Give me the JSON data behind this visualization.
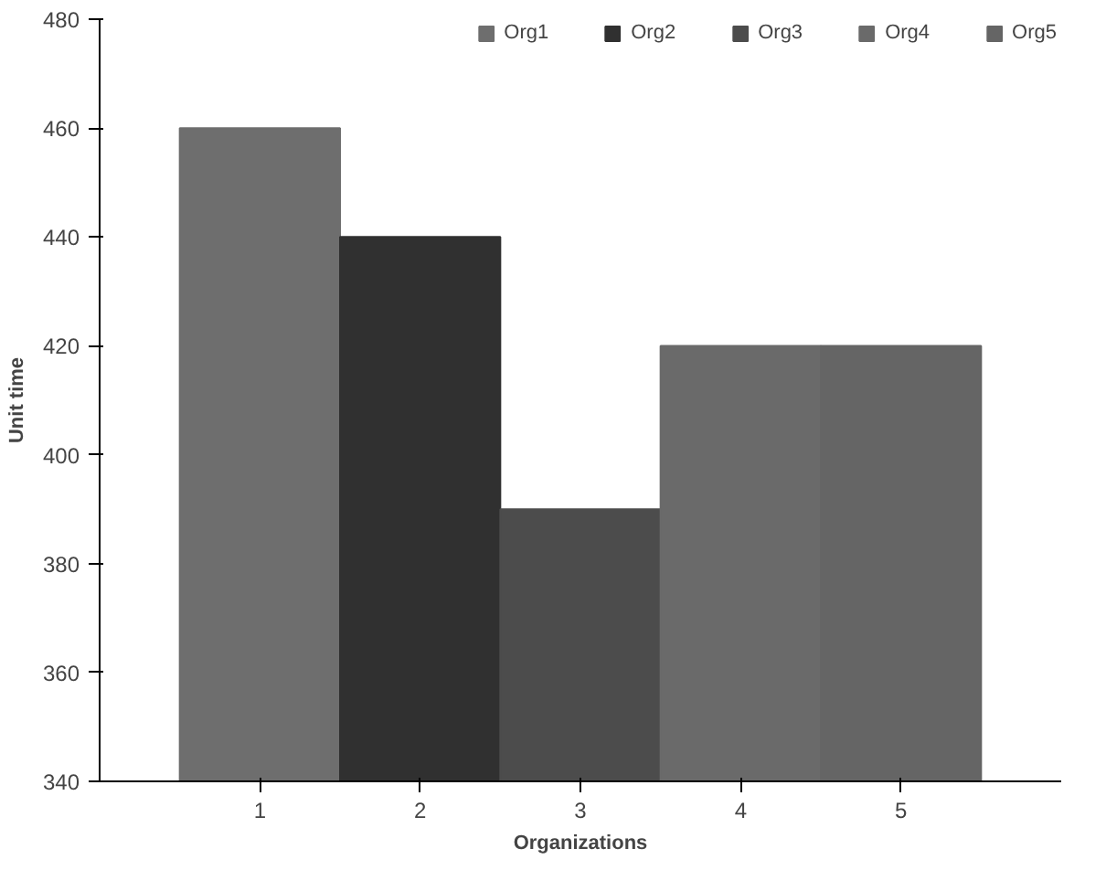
{
  "chart_data": {
    "type": "bar",
    "xlabel": "Organizations",
    "ylabel": "Unit time",
    "categories": [
      "1",
      "2",
      "3",
      "4",
      "5"
    ],
    "series": [
      {
        "name": "Org1",
        "color": "#6e6e6e",
        "values": [
          460,
          null,
          null,
          null,
          null
        ]
      },
      {
        "name": "Org2",
        "color": "#303030",
        "values": [
          null,
          440,
          null,
          null,
          null
        ]
      },
      {
        "name": "Org3",
        "color": "#4c4c4c",
        "values": [
          null,
          null,
          390,
          null,
          null
        ]
      },
      {
        "name": "Org4",
        "color": "#6a6a6a",
        "values": [
          null,
          null,
          null,
          420,
          null
        ]
      },
      {
        "name": "Org5",
        "color": "#656565",
        "values": [
          null,
          null,
          null,
          null,
          420
        ]
      }
    ],
    "ylim": [
      340,
      480
    ],
    "yticks": [
      340,
      360,
      380,
      400,
      420,
      440,
      460,
      480
    ],
    "grid": false,
    "legend": "top"
  }
}
